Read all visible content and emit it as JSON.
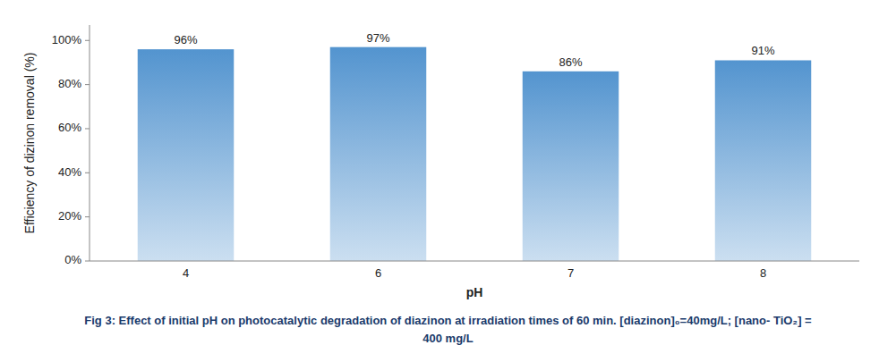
{
  "chart_data": {
    "type": "bar",
    "categories": [
      "4",
      "6",
      "7",
      "8"
    ],
    "values": [
      96,
      97,
      86,
      91
    ],
    "value_labels": [
      "96%",
      "97%",
      "86%",
      "91%"
    ],
    "data_labels": true,
    "color": "#5394cf",
    "xlabel": "pH",
    "ylabel": "Efficiency of dizinon removal (%)",
    "ylim": [
      0,
      107
    ],
    "yticks": [
      {
        "value": 0,
        "label": "0%"
      },
      {
        "value": 20,
        "label": "20%"
      },
      {
        "value": 40,
        "label": "40%"
      },
      {
        "value": 60,
        "label": "60%"
      },
      {
        "value": 80,
        "label": "80%"
      },
      {
        "value": 100,
        "label": "100%"
      }
    ],
    "grid": false,
    "caption": [
      "Fig 3: Effect of initial pH on photocatalytic degradation of diazinon at irradiation times of 60 min. [diazinon]₀=40mg/L; [nano- TiO₂] =",
      "400 mg/L"
    ]
  }
}
